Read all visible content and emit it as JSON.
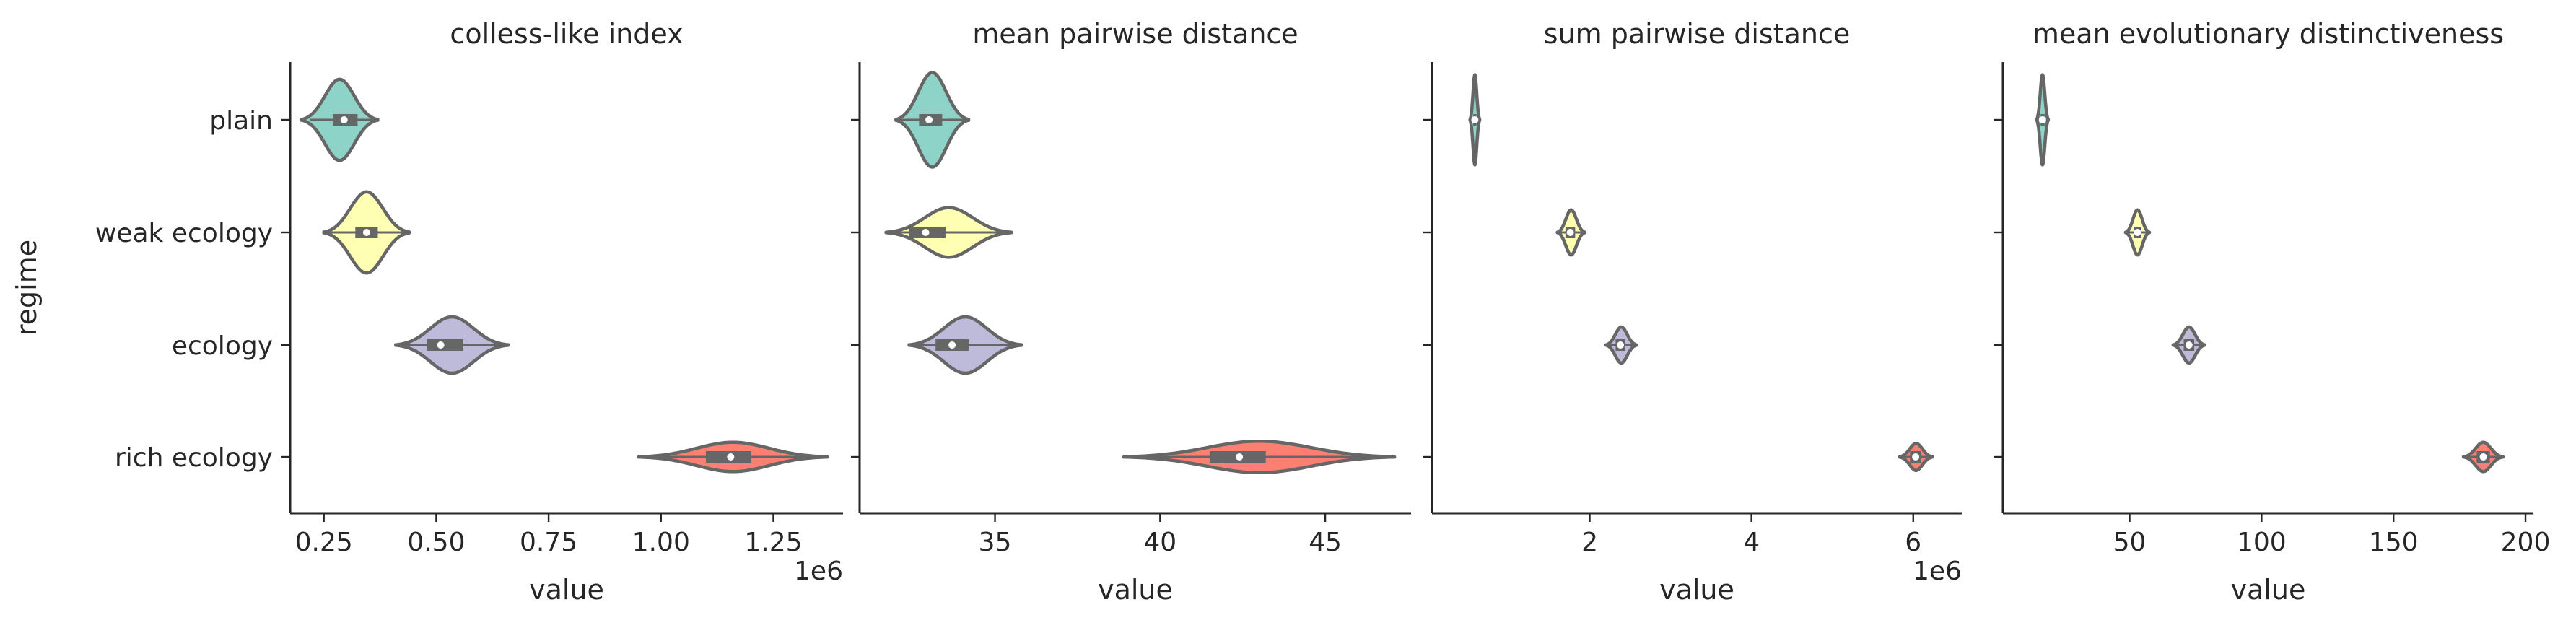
{
  "chart_data": {
    "type": "violin",
    "orientation": "horizontal",
    "ylabel": "regime",
    "categories": [
      "plain",
      "weak ecology",
      "ecology",
      "rich ecology"
    ],
    "colors": [
      "#8dd3c7",
      "#ffffb3",
      "#bebada",
      "#fb8072"
    ],
    "panels": [
      {
        "title": "colless-like index",
        "xlabel": "value",
        "offset_label": "1e6",
        "xlim": [
          0.175,
          1.405
        ],
        "xticks": [
          0.25,
          0.5,
          0.75,
          1.0,
          1.25
        ],
        "xtick_labels": [
          "0.25",
          "0.50",
          "0.75",
          "1.00",
          "1.25"
        ],
        "series": [
          {
            "name": "plain",
            "min": 0.22,
            "q1": 0.27,
            "median": 0.295,
            "q3": 0.325,
            "max": 0.36,
            "lo": 0.2,
            "hi": 0.37,
            "half_width": 0.36
          },
          {
            "name": "weak ecology",
            "min": 0.26,
            "q1": 0.32,
            "median": 0.345,
            "q3": 0.37,
            "max": 0.43,
            "lo": 0.25,
            "hi": 0.44,
            "half_width": 0.36
          },
          {
            "name": "ecology",
            "min": 0.42,
            "q1": 0.48,
            "median": 0.51,
            "q3": 0.56,
            "max": 0.65,
            "lo": 0.41,
            "hi": 0.66,
            "half_width": 0.25
          },
          {
            "name": "rich ecology",
            "min": 0.96,
            "q1": 1.1,
            "median": 1.155,
            "q3": 1.2,
            "max": 1.36,
            "lo": 0.95,
            "hi": 1.37,
            "half_width": 0.13
          }
        ]
      },
      {
        "title": "mean pairwise distance",
        "xlabel": "value",
        "offset_label": "",
        "xlim": [
          30.9,
          47.6
        ],
        "xticks": [
          35,
          40,
          45
        ],
        "xtick_labels": [
          "35",
          "40",
          "45"
        ],
        "series": [
          {
            "name": "plain",
            "min": 32.1,
            "q1": 32.7,
            "median": 33.0,
            "q3": 33.4,
            "max": 34.1,
            "lo": 32.0,
            "hi": 34.2,
            "half_width": 0.42
          },
          {
            "name": "weak ecology",
            "min": 31.8,
            "q1": 32.4,
            "median": 32.9,
            "q3": 33.5,
            "max": 35.4,
            "lo": 31.7,
            "hi": 35.5,
            "half_width": 0.22
          },
          {
            "name": "ecology",
            "min": 32.5,
            "q1": 33.2,
            "median": 33.7,
            "q3": 34.2,
            "max": 35.7,
            "lo": 32.4,
            "hi": 35.8,
            "half_width": 0.25
          },
          {
            "name": "rich ecology",
            "min": 39.0,
            "q1": 41.5,
            "median": 42.4,
            "q3": 43.2,
            "max": 47.0,
            "lo": 38.9,
            "hi": 47.1,
            "half_width": 0.14
          }
        ]
      },
      {
        "title": "sum pairwise distance",
        "xlabel": "value",
        "offset_label": "1e6",
        "xlim": [
          0.05,
          6.6
        ],
        "xticks": [
          2,
          4,
          6
        ],
        "xtick_labels": [
          "2",
          "4",
          "6"
        ],
        "series": [
          {
            "name": "plain",
            "min": 0.55,
            "q1": 0.56,
            "median": 0.58,
            "q3": 0.6,
            "max": 0.62,
            "lo": 0.52,
            "hi": 0.64,
            "half_width": 0.4
          },
          {
            "name": "weak ecology",
            "min": 1.62,
            "q1": 1.7,
            "median": 1.76,
            "q3": 1.82,
            "max": 1.92,
            "lo": 1.6,
            "hi": 1.94,
            "half_width": 0.2
          },
          {
            "name": "ecology",
            "min": 2.22,
            "q1": 2.32,
            "median": 2.38,
            "q3": 2.44,
            "max": 2.56,
            "lo": 2.2,
            "hi": 2.58,
            "half_width": 0.16
          },
          {
            "name": "rich ecology",
            "min": 5.85,
            "q1": 5.96,
            "median": 6.03,
            "q3": 6.1,
            "max": 6.22,
            "lo": 5.83,
            "hi": 6.24,
            "half_width": 0.12
          }
        ]
      },
      {
        "title": "mean evolutionary distinctiveness",
        "xlabel": "value",
        "offset_label": "",
        "xlim": [
          2,
          203
        ],
        "xticks": [
          50,
          100,
          150,
          200
        ],
        "xtick_labels": [
          "50",
          "100",
          "150",
          "200"
        ],
        "series": [
          {
            "name": "plain",
            "min": 15.5,
            "q1": 16.3,
            "median": 17.0,
            "q3": 17.8,
            "max": 18.6,
            "lo": 14.8,
            "hi": 19.2,
            "half_width": 0.4
          },
          {
            "name": "weak ecology",
            "min": 49.5,
            "q1": 51.5,
            "median": 53.0,
            "q3": 54.5,
            "max": 57.0,
            "lo": 48.5,
            "hi": 57.5,
            "half_width": 0.2
          },
          {
            "name": "ecology",
            "min": 67.5,
            "q1": 70.5,
            "median": 72.5,
            "q3": 74.5,
            "max": 78.0,
            "lo": 66.5,
            "hi": 78.5,
            "half_width": 0.16
          },
          {
            "name": "rich ecology",
            "min": 177.5,
            "q1": 181.5,
            "median": 184.0,
            "q3": 186.5,
            "max": 190.5,
            "lo": 176.5,
            "hi": 191.5,
            "half_width": 0.13
          }
        ]
      }
    ]
  }
}
